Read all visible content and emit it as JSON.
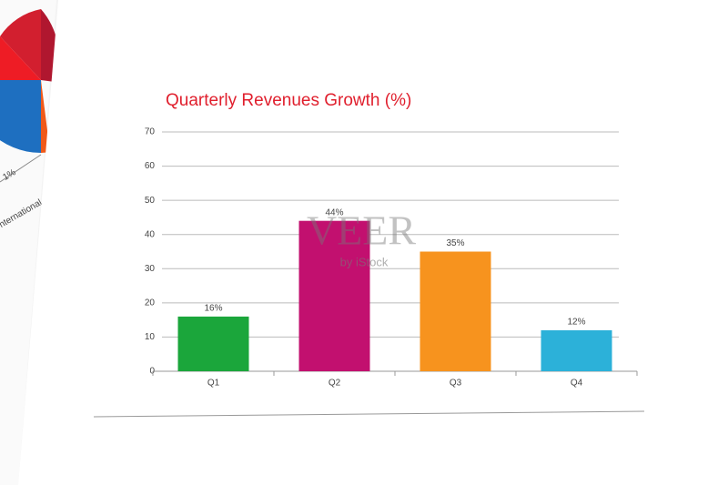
{
  "chart_data": {
    "type": "bar",
    "title": "Quarterly Revenues Growth (%)",
    "categories": [
      "Q1",
      "Q2",
      "Q3",
      "Q4"
    ],
    "values": [
      16,
      44,
      35,
      12
    ],
    "value_labels": [
      "16%",
      "44%",
      "35%",
      "12%"
    ],
    "colors": [
      "#1ba63b",
      "#c2106f",
      "#f7931e",
      "#2cb1d9"
    ],
    "ylim": [
      0,
      70
    ],
    "yticks": [
      0,
      10,
      20,
      30,
      40,
      50,
      60,
      70
    ],
    "grid": true
  },
  "watermark": [
    "VEER",
    "by iStock"
  ],
  "background_texts": [
    "1%",
    "nternational"
  ]
}
